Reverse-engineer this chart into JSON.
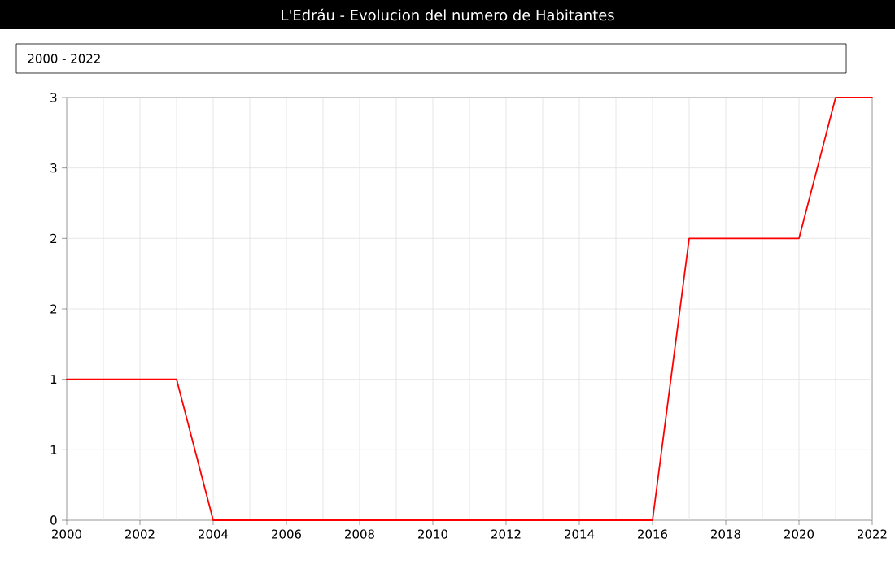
{
  "chart_data": {
    "type": "line",
    "title": "L'Edráu - Evolucion del numero de Habitantes",
    "annotations": [
      "2000 - 2022"
    ],
    "x": [
      2000,
      2001,
      2002,
      2003,
      2004,
      2005,
      2006,
      2007,
      2008,
      2009,
      2010,
      2011,
      2012,
      2013,
      2014,
      2015,
      2016,
      2017,
      2018,
      2019,
      2020,
      2021,
      2022
    ],
    "series": [
      {
        "color": "#ff0000",
        "values": [
          1,
          1,
          1,
          1,
          0,
          0,
          0,
          0,
          0,
          0,
          0,
          0,
          0,
          0,
          0,
          0,
          0,
          2,
          2,
          2,
          2,
          3,
          3
        ]
      }
    ],
    "xlim": [
      2000,
      2022
    ],
    "xticks": [
      2000,
      2002,
      2004,
      2006,
      2008,
      2010,
      2012,
      2014,
      2016,
      2018,
      2020,
      2022
    ],
    "ylim": [
      0,
      3
    ],
    "yticks": [
      0,
      {
        "value": 0.5,
        "label": "1"
      },
      1,
      {
        "value": 1.5,
        "label": "2"
      },
      2,
      {
        "value": 2.5,
        "label": "3"
      },
      3
    ],
    "grid": true,
    "marker": "none",
    "line_style": "solid"
  }
}
